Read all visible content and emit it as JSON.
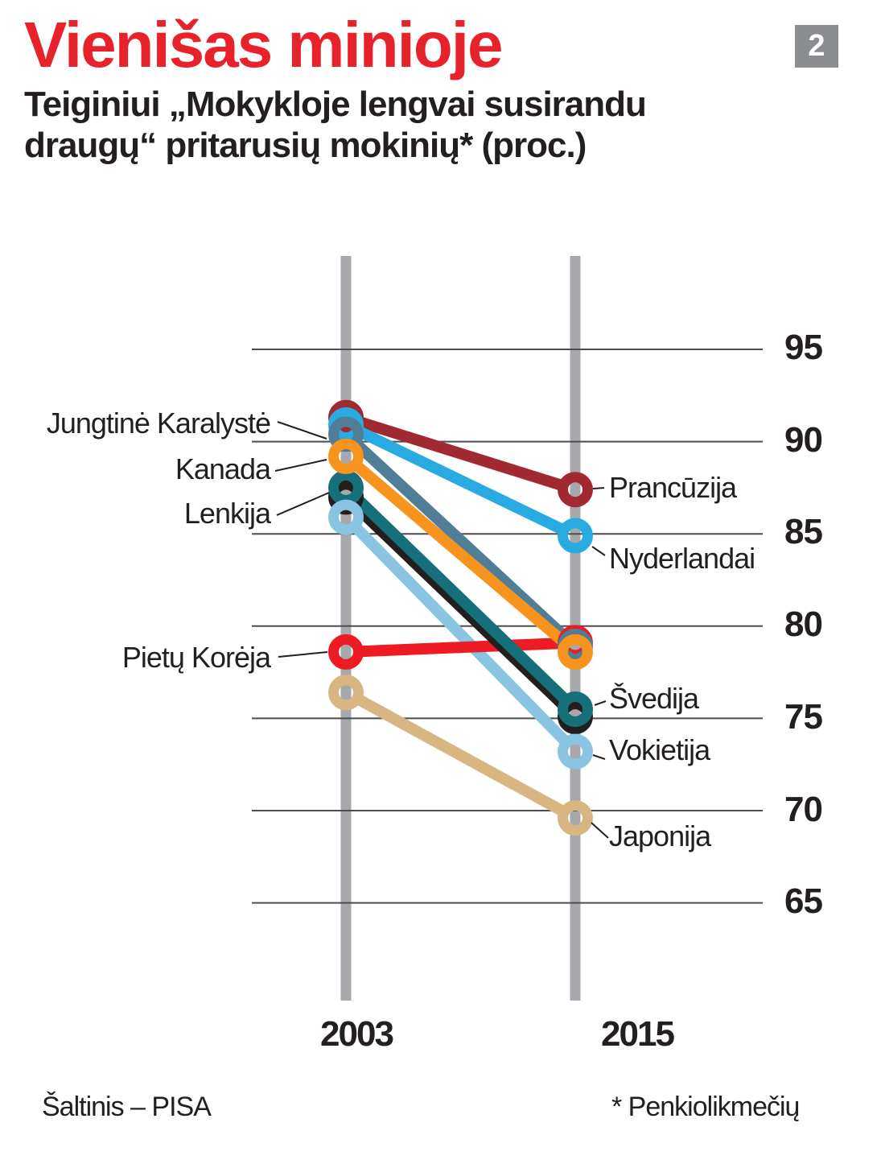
{
  "header": {
    "title": "Vienišas minioje",
    "subtitle_line1": "Teiginiui „Mokykloje lengvai susirandu",
    "subtitle_line2": "draugų“ pritarusių mokinių* (proc.)",
    "badge": "2"
  },
  "footer": {
    "source": "Šaltinis – PISA",
    "footnote": "* Penkiolikmečių"
  },
  "chart_data": {
    "type": "line",
    "variant": "slope-chart",
    "title": "Vienišas minioje",
    "subtitle": "Teiginiui „Mokykloje lengvai susirandu draugų“ pritarusių mokinių* (proc.)",
    "x_categories": [
      "2003",
      "2015"
    ],
    "yticks": [
      95,
      90,
      85,
      80,
      75,
      70,
      65
    ],
    "ylim": [
      63,
      97
    ],
    "grid": true,
    "legend_position": "inline-labels",
    "axis_color": "#A6A8AB",
    "grid_color": "#4D4D4F",
    "label_color": "#231F20",
    "series": [
      {
        "name": "Jungtinė Karalystė",
        "color": "#507E96",
        "values": [
          90.4,
          78.9
        ],
        "label_side": "left"
      },
      {
        "name": "Kanada",
        "color": "#F7941D",
        "values": [
          89.2,
          78.6
        ],
        "label_side": "left"
      },
      {
        "name": "Lenkija",
        "color": "#231F20",
        "values": [
          87.0,
          75.1
        ],
        "label_side": "left"
      },
      {
        "name": "Pietų Korėja",
        "color": "#ED1C24",
        "values": [
          78.6,
          79.1
        ],
        "label_side": "left"
      },
      {
        "name": "Prancūzija",
        "color": "#A12A32",
        "values": [
          91.3,
          87.4
        ],
        "label_side": "right"
      },
      {
        "name": "Nyderlandai",
        "color": "#29ABE2",
        "values": [
          90.9,
          84.9
        ],
        "label_side": "right"
      },
      {
        "name": "Švedija",
        "color": "#16707A",
        "values": [
          87.5,
          75.5
        ],
        "label_side": "right"
      },
      {
        "name": "Vokietija",
        "color": "#89C5E1",
        "values": [
          85.9,
          73.2
        ],
        "label_side": "right"
      },
      {
        "name": "Japonija",
        "color": "#D8B682",
        "values": [
          76.4,
          69.6
        ],
        "label_side": "right"
      }
    ]
  }
}
